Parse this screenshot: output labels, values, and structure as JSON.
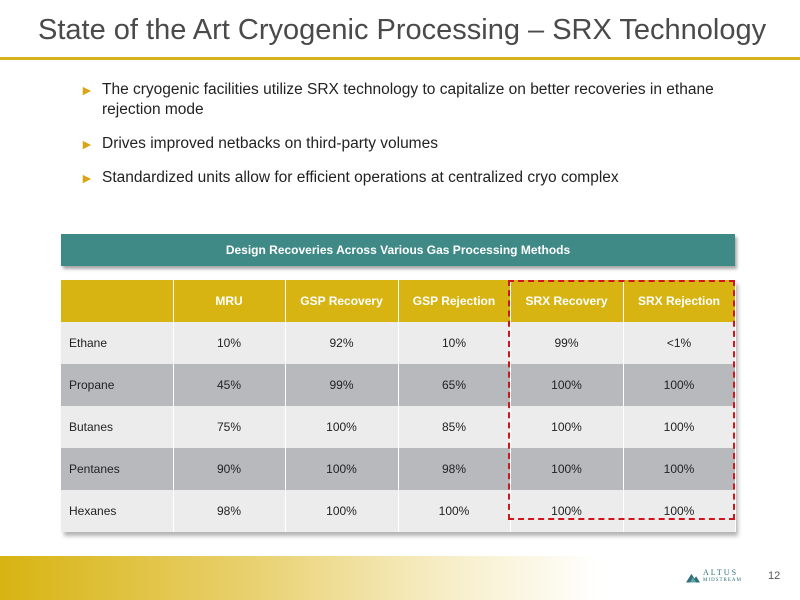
{
  "slide": {
    "title": "State of the Art Cryogenic Processing – SRX Technology",
    "bullets": [
      "The cryogenic facilities utilize SRX technology to capitalize on better recoveries in ethane rejection mode",
      "Drives improved netbacks on third-party volumes",
      "Standardized units allow for efficient operations at centralized cryo complex"
    ],
    "bullet_marker": "►",
    "page_number": "12"
  },
  "table": {
    "caption": "Design Recoveries Across Various Gas Processing Methods",
    "columns": [
      "",
      "MRU",
      "GSP Recovery",
      "GSP Rejection",
      "SRX Recovery",
      "SRX Rejection"
    ],
    "rows": [
      [
        "Ethane",
        "10%",
        "92%",
        "10%",
        "99%",
        "<1%"
      ],
      [
        "Propane",
        "45%",
        "99%",
        "65%",
        "100%",
        "100%"
      ],
      [
        "Butanes",
        "75%",
        "100%",
        "85%",
        "100%",
        "100%"
      ],
      [
        "Pentanes",
        "90%",
        "100%",
        "98%",
        "100%",
        "100%"
      ],
      [
        "Hexanes",
        "98%",
        "100%",
        "100%",
        "100%",
        "100%"
      ]
    ],
    "highlighted_columns": [
      "SRX Recovery",
      "SRX Rejection"
    ]
  },
  "logo": {
    "word": "ALTUS",
    "sub": "MIDSTREAM",
    "icon": "mountain-icon"
  },
  "colors": {
    "accent_gold": "#d7b412",
    "caption_teal": "#3f8a86",
    "highlight_red": "#d0161b",
    "row_light": "#ececec",
    "row_dark": "#b7b9bd"
  }
}
